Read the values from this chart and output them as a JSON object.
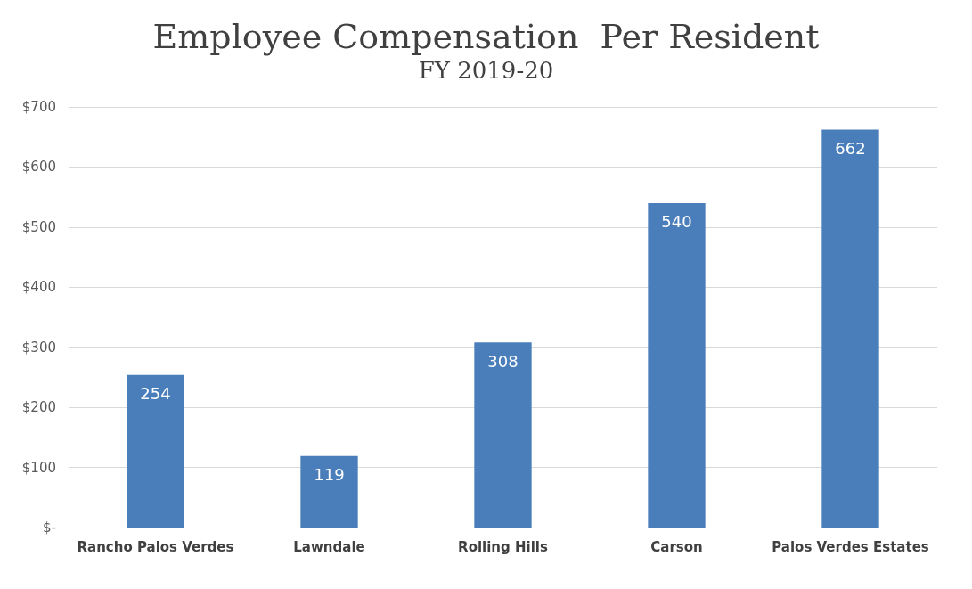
{
  "chart_data": {
    "type": "bar",
    "title": "Employee Compensation  Per Resident",
    "subtitle": "FY 2019-20",
    "categories": [
      "Rancho Palos Verdes",
      "Lawndale",
      "Rolling Hills",
      "Carson",
      "Palos Verdes Estates"
    ],
    "values": [
      254,
      119,
      308,
      540,
      662
    ],
    "color": "#4a7ebb",
    "ylim": [
      0,
      700
    ],
    "yticks": [
      {
        "value": 0,
        "label": "$-"
      },
      {
        "value": 100,
        "label": "$100"
      },
      {
        "value": 200,
        "label": "$200"
      },
      {
        "value": 300,
        "label": "$300"
      },
      {
        "value": 400,
        "label": "$400"
      },
      {
        "value": 500,
        "label": "$500"
      },
      {
        "value": 600,
        "label": "$600"
      },
      {
        "value": 700,
        "label": "$700"
      }
    ],
    "grid": "y",
    "data_labels": true
  }
}
